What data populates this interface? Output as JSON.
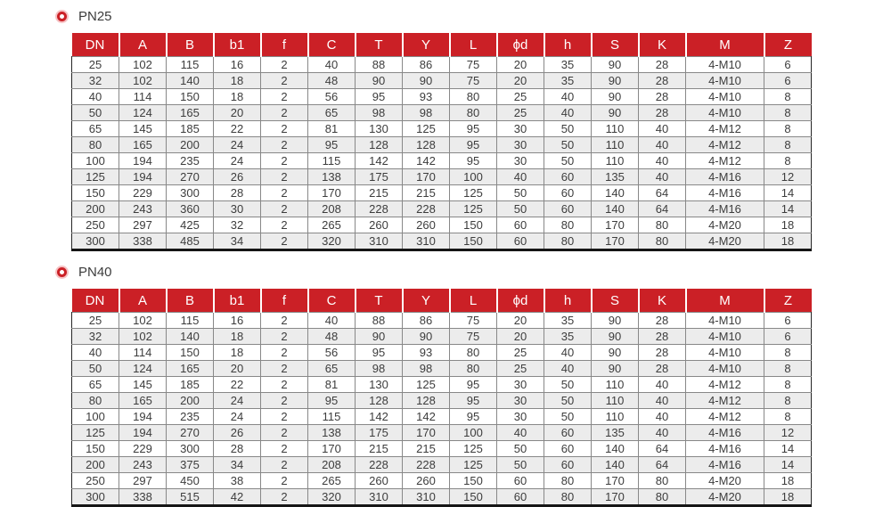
{
  "colors": {
    "header_bg": "#cb2026",
    "header_text": "#ffffff",
    "stripe": "#ececec",
    "bullet_ring": "#cb2026",
    "bullet_halo": "#f6c3c5"
  },
  "sections": [
    {
      "title": "PN25",
      "columns": [
        "DN",
        "A",
        "B",
        "b1",
        "f",
        "C",
        "T",
        "Y",
        "L",
        "ϕd",
        "h",
        "S",
        "K",
        "M",
        "Z"
      ],
      "rows": [
        [
          "25",
          "102",
          "115",
          "16",
          "2",
          "40",
          "88",
          "86",
          "75",
          "20",
          "35",
          "90",
          "28",
          "4-M10",
          "6"
        ],
        [
          "32",
          "102",
          "140",
          "18",
          "2",
          "48",
          "90",
          "90",
          "75",
          "20",
          "35",
          "90",
          "28",
          "4-M10",
          "6"
        ],
        [
          "40",
          "114",
          "150",
          "18",
          "2",
          "56",
          "95",
          "93",
          "80",
          "25",
          "40",
          "90",
          "28",
          "4-M10",
          "8"
        ],
        [
          "50",
          "124",
          "165",
          "20",
          "2",
          "65",
          "98",
          "98",
          "80",
          "25",
          "40",
          "90",
          "28",
          "4-M10",
          "8"
        ],
        [
          "65",
          "145",
          "185",
          "22",
          "2",
          "81",
          "130",
          "125",
          "95",
          "30",
          "50",
          "110",
          "40",
          "4-M12",
          "8"
        ],
        [
          "80",
          "165",
          "200",
          "24",
          "2",
          "95",
          "128",
          "128",
          "95",
          "30",
          "50",
          "110",
          "40",
          "4-M12",
          "8"
        ],
        [
          "100",
          "194",
          "235",
          "24",
          "2",
          "115",
          "142",
          "142",
          "95",
          "30",
          "50",
          "110",
          "40",
          "4-M12",
          "8"
        ],
        [
          "125",
          "194",
          "270",
          "26",
          "2",
          "138",
          "175",
          "170",
          "100",
          "40",
          "60",
          "135",
          "40",
          "4-M16",
          "12"
        ],
        [
          "150",
          "229",
          "300",
          "28",
          "2",
          "170",
          "215",
          "215",
          "125",
          "50",
          "60",
          "140",
          "64",
          "4-M16",
          "14"
        ],
        [
          "200",
          "243",
          "360",
          "30",
          "2",
          "208",
          "228",
          "228",
          "125",
          "50",
          "60",
          "140",
          "64",
          "4-M16",
          "14"
        ],
        [
          "250",
          "297",
          "425",
          "32",
          "2",
          "265",
          "260",
          "260",
          "150",
          "60",
          "80",
          "170",
          "80",
          "4-M20",
          "18"
        ],
        [
          "300",
          "338",
          "485",
          "34",
          "2",
          "320",
          "310",
          "310",
          "150",
          "60",
          "80",
          "170",
          "80",
          "4-M20",
          "18"
        ]
      ]
    },
    {
      "title": "PN40",
      "columns": [
        "DN",
        "A",
        "B",
        "b1",
        "f",
        "C",
        "T",
        "Y",
        "L",
        "ϕd",
        "h",
        "S",
        "K",
        "M",
        "Z"
      ],
      "rows": [
        [
          "25",
          "102",
          "115",
          "16",
          "2",
          "40",
          "88",
          "86",
          "75",
          "20",
          "35",
          "90",
          "28",
          "4-M10",
          "6"
        ],
        [
          "32",
          "102",
          "140",
          "18",
          "2",
          "48",
          "90",
          "90",
          "75",
          "20",
          "35",
          "90",
          "28",
          "4-M10",
          "6"
        ],
        [
          "40",
          "114",
          "150",
          "18",
          "2",
          "56",
          "95",
          "93",
          "80",
          "25",
          "40",
          "90",
          "28",
          "4-M10",
          "8"
        ],
        [
          "50",
          "124",
          "165",
          "20",
          "2",
          "65",
          "98",
          "98",
          "80",
          "25",
          "40",
          "90",
          "28",
          "4-M10",
          "8"
        ],
        [
          "65",
          "145",
          "185",
          "22",
          "2",
          "81",
          "130",
          "125",
          "95",
          "30",
          "50",
          "110",
          "40",
          "4-M12",
          "8"
        ],
        [
          "80",
          "165",
          "200",
          "24",
          "2",
          "95",
          "128",
          "128",
          "95",
          "30",
          "50",
          "110",
          "40",
          "4-M12",
          "8"
        ],
        [
          "100",
          "194",
          "235",
          "24",
          "2",
          "115",
          "142",
          "142",
          "95",
          "30",
          "50",
          "110",
          "40",
          "4-M12",
          "8"
        ],
        [
          "125",
          "194",
          "270",
          "26",
          "2",
          "138",
          "175",
          "170",
          "100",
          "40",
          "60",
          "135",
          "40",
          "4-M16",
          "12"
        ],
        [
          "150",
          "229",
          "300",
          "28",
          "2",
          "170",
          "215",
          "215",
          "125",
          "50",
          "60",
          "140",
          "64",
          "4-M16",
          "14"
        ],
        [
          "200",
          "243",
          "375",
          "34",
          "2",
          "208",
          "228",
          "228",
          "125",
          "50",
          "60",
          "140",
          "64",
          "4-M16",
          "14"
        ],
        [
          "250",
          "297",
          "450",
          "38",
          "2",
          "265",
          "260",
          "260",
          "150",
          "60",
          "80",
          "170",
          "80",
          "4-M20",
          "18"
        ],
        [
          "300",
          "338",
          "515",
          "42",
          "2",
          "320",
          "310",
          "310",
          "150",
          "60",
          "80",
          "170",
          "80",
          "4-M20",
          "18"
        ]
      ]
    }
  ]
}
